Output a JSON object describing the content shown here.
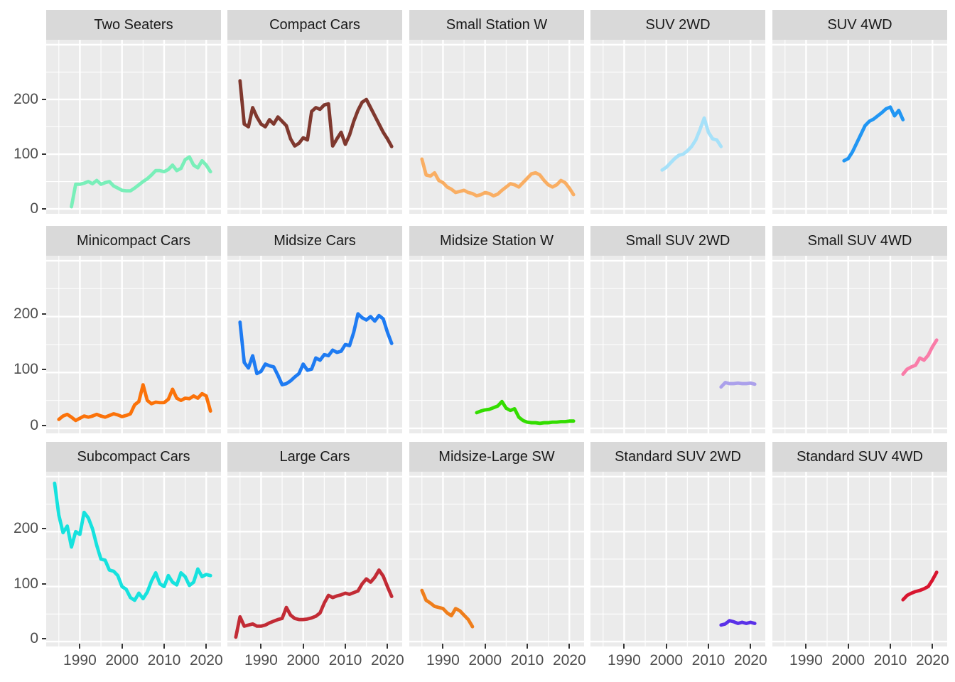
{
  "chart_data": {
    "type": "line",
    "title": "",
    "layout": {
      "rows": 3,
      "cols": 5,
      "legend": "none",
      "grid": "on",
      "facet_style": "ggplot"
    },
    "x_axis": {
      "tick_values": [
        1990,
        2000,
        2010,
        2020
      ],
      "tick_labels": [
        "1990",
        "2000",
        "2010",
        "2020"
      ],
      "minor_gridlines": [
        1985,
        1995,
        2005,
        2015
      ],
      "domain": [
        1982,
        2023.5
      ]
    },
    "y_axis": {
      "tick_values": [
        0,
        100,
        200
      ],
      "tick_labels": [
        "0",
        "100",
        "200"
      ],
      "major_gridlines": [
        0,
        100,
        200,
        300
      ],
      "minor_gridlines": [
        50,
        150,
        250
      ],
      "domain": [
        -9,
        309
      ]
    },
    "theme": {
      "page_bg": "#FFFFFF",
      "panel_bg": "#EBEBEB",
      "strip_bg": "#D9D9D9",
      "gridline_color": "#FFFFFF",
      "axis_text_color": "#4D4D4D",
      "strip_text_color": "#1A1A1A",
      "tick_mark_color": "#333333",
      "line_width": 4.8
    },
    "facets": [
      {
        "label": "Two Seaters",
        "color": "#79EFB9",
        "start_year": 1988,
        "values": [
          4,
          45,
          45,
          47,
          50,
          46,
          52,
          45,
          48,
          50,
          42,
          38,
          34,
          33,
          33,
          38,
          44,
          50,
          55,
          62,
          70,
          70,
          68,
          72,
          80,
          70,
          74,
          90,
          95,
          80,
          75,
          88,
          80,
          68
        ]
      },
      {
        "label": "Compact Cars",
        "color": "#7F382E",
        "start_year": 1985,
        "values": [
          234,
          155,
          150,
          185,
          168,
          155,
          150,
          163,
          155,
          168,
          160,
          152,
          128,
          115,
          120,
          130,
          126,
          178,
          185,
          182,
          190,
          192,
          115,
          128,
          140,
          118,
          135,
          160,
          180,
          195,
          200,
          185,
          170,
          155,
          140,
          128,
          114
        ]
      },
      {
        "label": "Small Station W",
        "color": "#F9AE63",
        "start_year": 1985,
        "values": [
          91,
          62,
          60,
          66,
          52,
          48,
          40,
          36,
          30,
          32,
          34,
          30,
          28,
          24,
          26,
          30,
          28,
          24,
          27,
          34,
          40,
          46,
          44,
          40,
          48,
          56,
          64,
          66,
          62,
          52,
          44,
          40,
          44,
          52,
          48,
          38,
          26
        ]
      },
      {
        "label": "SUV 2WD",
        "color": "#A6E1F9",
        "start_year": 1999,
        "values": [
          71,
          76,
          84,
          92,
          98,
          100,
          106,
          114,
          126,
          145,
          166,
          140,
          128,
          126,
          114
        ]
      },
      {
        "label": "SUV 4WD",
        "color": "#2196F3",
        "start_year": 1999,
        "values": [
          88,
          92,
          104,
          120,
          136,
          152,
          160,
          164,
          170,
          176,
          183,
          186,
          170,
          180,
          163
        ]
      },
      {
        "label": "Minicompact Cars",
        "color": "#FB7209",
        "start_year": 1985,
        "values": [
          16,
          22,
          25,
          20,
          14,
          18,
          22,
          20,
          22,
          25,
          22,
          20,
          23,
          26,
          24,
          21,
          23,
          26,
          42,
          48,
          78,
          50,
          44,
          47,
          46,
          46,
          52,
          70,
          54,
          50,
          54,
          53,
          58,
          54,
          62,
          58,
          31
        ]
      },
      {
        "label": "Midsize Cars",
        "color": "#1E7BF2",
        "start_year": 1985,
        "values": [
          190,
          118,
          108,
          130,
          98,
          102,
          115,
          112,
          110,
          95,
          78,
          80,
          85,
          92,
          98,
          115,
          104,
          106,
          126,
          122,
          132,
          130,
          140,
          136,
          138,
          150,
          148,
          172,
          205,
          198,
          194,
          200,
          192,
          202,
          196,
          172,
          152
        ]
      },
      {
        "label": "Midsize Station W",
        "color": "#33DD00",
        "start_year": 1998,
        "values": [
          28,
          31,
          33,
          34,
          37,
          40,
          48,
          36,
          32,
          35,
          20,
          14,
          11,
          10,
          10,
          9,
          10,
          10,
          11,
          11,
          12,
          12,
          13,
          13
        ]
      },
      {
        "label": "Small SUV 2WD",
        "color": "#ABA0EB",
        "start_year": 2013,
        "values": [
          74,
          82,
          80,
          80,
          81,
          80,
          80,
          81,
          79
        ]
      },
      {
        "label": "Small SUV 4WD",
        "color": "#F97CA8",
        "start_year": 2013,
        "values": [
          97,
          106,
          110,
          113,
          126,
          122,
          131,
          146,
          158
        ]
      },
      {
        "label": "Subcompact Cars",
        "color": "#16E2DE",
        "start_year": 1984,
        "values": [
          288,
          230,
          198,
          210,
          172,
          200,
          195,
          235,
          225,
          205,
          175,
          150,
          148,
          130,
          128,
          120,
          100,
          95,
          80,
          75,
          88,
          78,
          90,
          110,
          125,
          105,
          100,
          120,
          108,
          103,
          125,
          118,
          102,
          108,
          132,
          118,
          122,
          120
        ]
      },
      {
        "label": "Large Cars",
        "color": "#C22B35",
        "start_year": 1984,
        "values": [
          8,
          45,
          28,
          30,
          32,
          28,
          28,
          30,
          34,
          37,
          40,
          42,
          62,
          48,
          42,
          40,
          40,
          41,
          43,
          46,
          52,
          70,
          84,
          80,
          83,
          85,
          88,
          86,
          89,
          92,
          105,
          114,
          108,
          117,
          130,
          119,
          100,
          82
        ]
      },
      {
        "label": "Midsize-Large SW",
        "color": "#EF7E1B",
        "start_year": 1985,
        "values": [
          93,
          75,
          70,
          64,
          62,
          60,
          52,
          47,
          60,
          56,
          48,
          40,
          27
        ]
      },
      {
        "label": "Standard SUV 2WD",
        "color": "#5A31E8",
        "start_year": 2013,
        "values": [
          30,
          32,
          38,
          36,
          33,
          35,
          33,
          35,
          33
        ]
      },
      {
        "label": "Standard SUV 4WD",
        "color": "#D8152F",
        "start_year": 2013,
        "values": [
          76,
          84,
          88,
          91,
          93,
          96,
          100,
          112,
          126
        ]
      }
    ]
  }
}
